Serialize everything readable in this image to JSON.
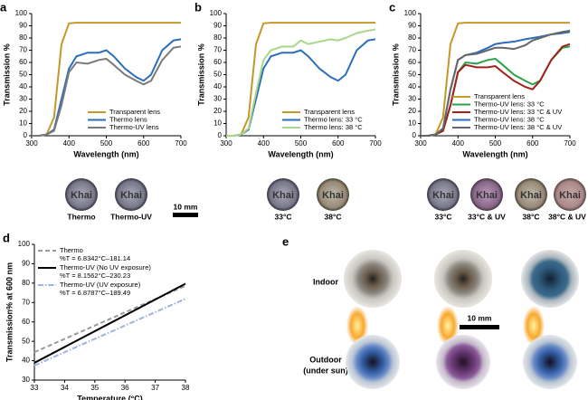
{
  "chart_data": [
    {
      "type": "line",
      "panel": "a",
      "xlabel": "Wavelength (nm)",
      "ylabel": "Transmission %",
      "x": [
        300,
        320,
        340,
        360,
        380,
        400,
        420,
        450,
        480,
        500,
        520,
        550,
        580,
        600,
        620,
        650,
        680,
        700
      ],
      "xlim": [
        300,
        700
      ],
      "xticks": [
        300,
        400,
        500,
        600,
        700
      ],
      "ylim": [
        0,
        100
      ],
      "yticks": [
        0,
        10,
        20,
        30,
        40,
        50,
        60,
        70,
        80,
        90,
        100
      ],
      "legend": "lower right",
      "series": [
        {
          "name": "Transparent lens",
          "color": "#c4982a",
          "values": [
            0,
            0,
            1,
            15,
            75,
            92,
            92.5,
            92.5,
            92.5,
            92.5,
            92.5,
            92.5,
            92.5,
            92.5,
            92.5,
            92.5,
            92.5,
            92.5
          ]
        },
        {
          "name": "Thermo lens",
          "color": "#2a6ebd",
          "values": [
            0,
            0,
            1,
            5,
            30,
            55,
            65,
            68,
            68,
            70,
            65,
            55,
            48,
            45,
            50,
            70,
            78,
            79
          ]
        },
        {
          "name": "Thermo-UV lens",
          "color": "#7a7a7a",
          "values": [
            0,
            0,
            1,
            4,
            25,
            52,
            60,
            59,
            62,
            63,
            58,
            50,
            45,
            42,
            45,
            62,
            72,
            73
          ]
        }
      ]
    },
    {
      "type": "line",
      "panel": "b",
      "xlabel": "Wavelength (nm)",
      "ylabel": "Transmission %",
      "x": [
        300,
        320,
        340,
        360,
        380,
        400,
        420,
        450,
        480,
        500,
        520,
        550,
        580,
        600,
        620,
        650,
        680,
        700
      ],
      "xlim": [
        300,
        700
      ],
      "xticks": [
        300,
        400,
        500,
        600,
        700
      ],
      "ylim": [
        0,
        100
      ],
      "yticks": [
        0,
        10,
        20,
        30,
        40,
        50,
        60,
        70,
        80,
        90,
        100
      ],
      "legend": "lower right",
      "series": [
        {
          "name": "Transparent lens",
          "color": "#c4982a",
          "values": [
            0,
            0,
            1,
            15,
            75,
            92,
            92.5,
            92.5,
            92.5,
            92.5,
            92.5,
            92.5,
            92.5,
            92.5,
            92.5,
            92.5,
            92.5,
            92.5
          ]
        },
        {
          "name": "Thermo lens: 33 °C",
          "color": "#2a6ebd",
          "values": [
            0,
            0,
            1,
            5,
            30,
            55,
            65,
            68,
            68,
            70,
            65,
            55,
            48,
            45,
            50,
            70,
            78,
            79
          ]
        },
        {
          "name": "Thermo lens: 38 °C",
          "color": "#a8d68a",
          "values": [
            0,
            0,
            1,
            6,
            35,
            62,
            70,
            73,
            73,
            78,
            75,
            77,
            79,
            78,
            80,
            84,
            86,
            87
          ]
        }
      ]
    },
    {
      "type": "line",
      "panel": "c",
      "xlabel": "Wavelength (nm)",
      "ylabel": "Transmission %",
      "x": [
        300,
        320,
        340,
        360,
        380,
        400,
        420,
        450,
        480,
        500,
        520,
        550,
        580,
        600,
        620,
        650,
        680,
        700
      ],
      "xlim": [
        300,
        700
      ],
      "xticks": [
        300,
        400,
        500,
        600,
        700
      ],
      "ylim": [
        0,
        100
      ],
      "yticks": [
        0,
        10,
        20,
        30,
        40,
        50,
        60,
        70,
        80,
        90,
        100
      ],
      "legend": "lower right",
      "series": [
        {
          "name": "Transparent lens",
          "color": "#c4982a",
          "values": [
            0,
            0,
            1,
            15,
            75,
            92,
            92.5,
            92.5,
            92.5,
            92.5,
            92.5,
            92.5,
            92.5,
            92.5,
            92.5,
            92.5,
            92.5,
            92.5
          ]
        },
        {
          "name": "Thermo-UV lens: 33 °C",
          "color": "#2ba24c",
          "values": [
            0,
            0,
            1,
            4,
            25,
            52,
            60,
            59,
            62,
            63,
            58,
            50,
            45,
            42,
            45,
            62,
            72,
            73
          ]
        },
        {
          "name": "Thermo-UV lens: 33 °C & UV",
          "color": "#a3201c",
          "values": [
            0,
            0,
            1,
            4,
            25,
            52,
            58,
            56,
            56,
            57,
            52,
            45,
            40,
            38,
            45,
            62,
            73,
            75
          ]
        },
        {
          "name": "Thermo-UV lens: 38 °C",
          "color": "#2a6ebd",
          "values": [
            0,
            0,
            1,
            6,
            38,
            62,
            66,
            68,
            72,
            75,
            76,
            77,
            79,
            80,
            81,
            83,
            84,
            85
          ]
        },
        {
          "name": "Thermo-UV lens: 38 °C & UV",
          "color": "#666666",
          "values": [
            0,
            0,
            1,
            6,
            38,
            62,
            66,
            67,
            70,
            72,
            72,
            71,
            74,
            78,
            80,
            83,
            85,
            86
          ]
        }
      ]
    },
    {
      "type": "line",
      "panel": "d",
      "xlabel": "Temperature (°C)",
      "ylabel": "Transmission% at 600 nm",
      "x": [
        33,
        38
      ],
      "xlim": [
        33,
        38
      ],
      "xticks": [
        33,
        34,
        35,
        36,
        37,
        38
      ],
      "ylim": [
        30,
        100
      ],
      "yticks": [
        30,
        40,
        50,
        60,
        70,
        80,
        90,
        100
      ],
      "legend": "upper left",
      "series": [
        {
          "name": "Thermo",
          "equation": "%T = 6.8342°C–181.14",
          "color": "#9a9a9a",
          "dash": "dashed",
          "values": [
            44.4,
            78.6
          ]
        },
        {
          "name": "Thermo-UV (No UV exposure)",
          "equation": "%T = 8.1562°C–230.23",
          "color": "#000000",
          "values": [
            38.9,
            79.7
          ]
        },
        {
          "name": "Thermo-UV (UV exposure)",
          "equation": "%T = 6.8787°C–189.49",
          "color": "#9fb4dc",
          "dash": "dashdot",
          "values": [
            37.5,
            71.9
          ]
        }
      ]
    }
  ],
  "lens_text": "Khai",
  "scale_bar": "10 mm",
  "photo_captions": {
    "a": [
      "Thermo",
      "Thermo-UV"
    ],
    "b": [
      "33°C",
      "38°C"
    ],
    "c": [
      "33°C",
      "33°C & UV",
      "38°C",
      "38°C & UV"
    ]
  },
  "panel_e": {
    "label": "e",
    "indoor": "Indoor",
    "outdoor": [
      "Outdoor",
      "(under sun)"
    ]
  }
}
